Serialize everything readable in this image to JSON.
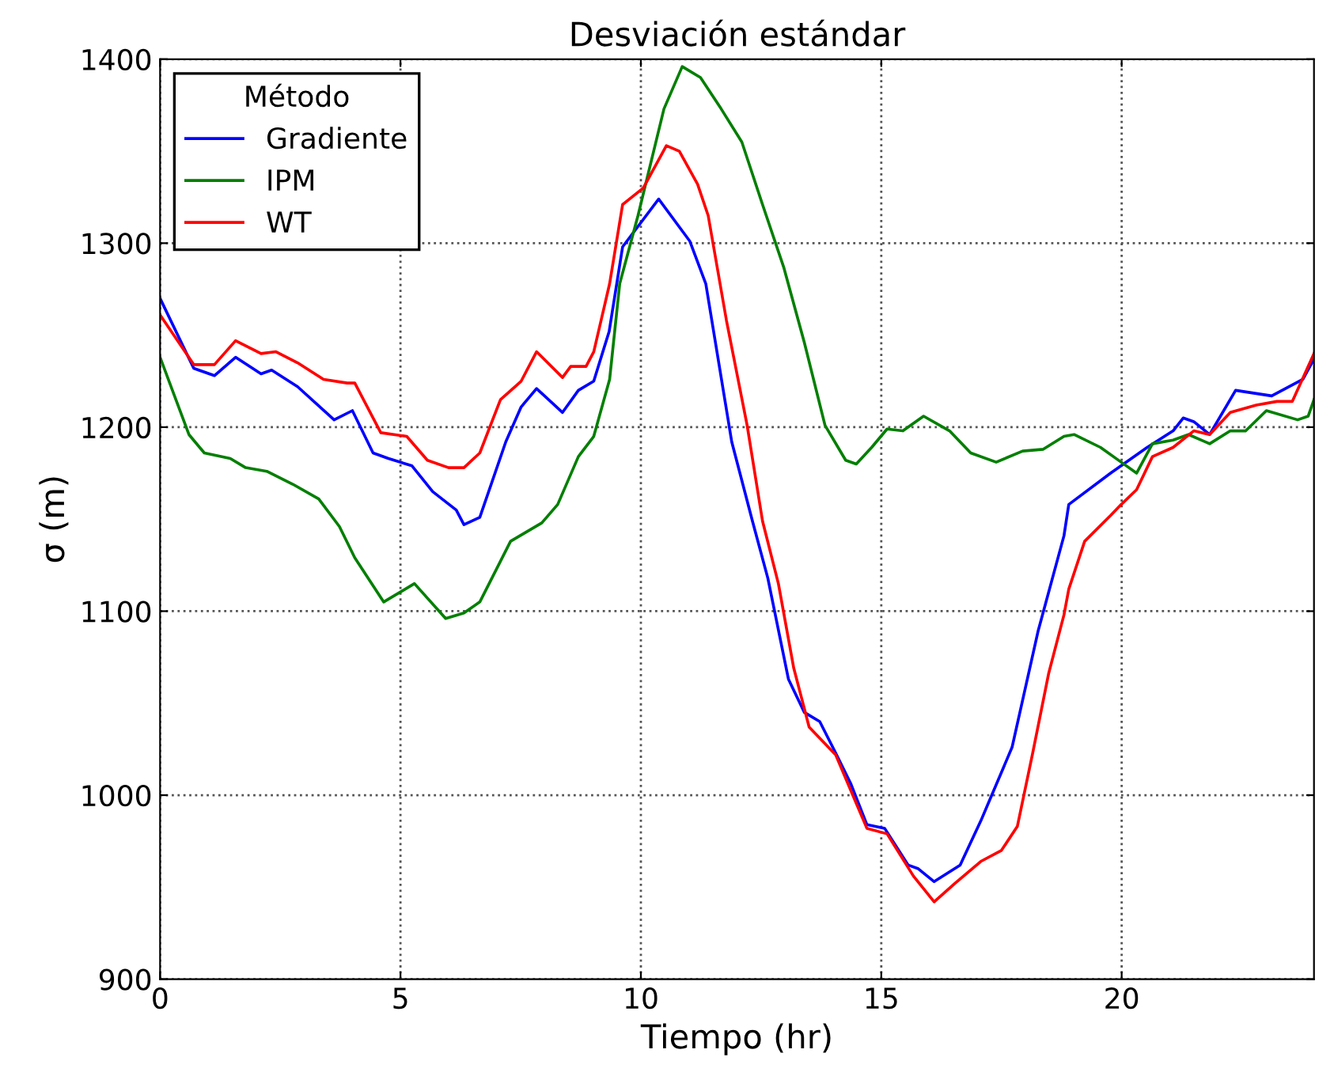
{
  "chart_data": {
    "type": "line",
    "title": "Desviación estándar",
    "xlabel": "Tiempo (hr)",
    "ylabel": "σ (m)",
    "legend_title": "Método",
    "legend": "top left",
    "grid": true,
    "line_style": "solid",
    "marker": "none",
    "xlim": [
      0,
      24
    ],
    "ylim": [
      900,
      1400
    ],
    "xticks": [
      0,
      5,
      10,
      15,
      20
    ],
    "yticks": [
      900,
      1000,
      1100,
      1200,
      1300,
      1400
    ],
    "series": [
      {
        "name": "Gradiente",
        "color": "#0000ff",
        "x": [
          0,
          0.7,
          1.13,
          1.57,
          2.1,
          2.32,
          2.86,
          3.62,
          4.0,
          4.43,
          4.75,
          5.24,
          5.67,
          6.16,
          6.32,
          6.65,
          7.19,
          7.51,
          7.83,
          8.37,
          8.7,
          9.02,
          9.34,
          9.62,
          10.37,
          11.02,
          11.35,
          11.89,
          12.32,
          12.64,
          13.07,
          13.4,
          13.72,
          14.05,
          14.37,
          14.7,
          15.07,
          15.56,
          15.77,
          16.1,
          16.64,
          17.07,
          17.72,
          18.26,
          18.8,
          18.9,
          19.77,
          20.53,
          21.07,
          21.28,
          21.5,
          21.83,
          22.37,
          23.12,
          23.77,
          24
        ],
        "values": [
          1270,
          1232,
          1228,
          1238,
          1229,
          1231,
          1222,
          1204,
          1209,
          1186,
          1183,
          1179,
          1165,
          1155,
          1147,
          1151,
          1192,
          1211,
          1221,
          1208,
          1220,
          1225,
          1252,
          1298,
          1324,
          1301,
          1278,
          1192,
          1149,
          1118,
          1063,
          1045,
          1040,
          1023,
          1006,
          984,
          982,
          962,
          960,
          953,
          962,
          986,
          1026,
          1089,
          1141,
          1158,
          1175,
          1189,
          1198,
          1205,
          1203,
          1196,
          1220,
          1217,
          1226,
          1237
        ]
      },
      {
        "name": "IPM",
        "color": "#007f00",
        "x": [
          0,
          0.6,
          0.92,
          1.46,
          1.78,
          2.22,
          2.76,
          3.3,
          3.73,
          4.05,
          4.65,
          5.29,
          5.94,
          6.32,
          6.65,
          7.29,
          7.94,
          8.27,
          8.7,
          9.02,
          9.35,
          9.56,
          9.94,
          10.48,
          10.86,
          11.24,
          11.67,
          12.1,
          12.53,
          12.97,
          13.4,
          13.83,
          14.26,
          14.48,
          14.8,
          15.12,
          15.45,
          15.88,
          16.42,
          16.86,
          17.39,
          17.94,
          18.37,
          18.8,
          19.01,
          19.56,
          19.99,
          20.31,
          20.64,
          21.07,
          21.39,
          21.83,
          22.26,
          22.58,
          23.01,
          23.66,
          23.88,
          24
        ],
        "values": [
          1238,
          1196,
          1186,
          1183,
          1178,
          1176,
          1169,
          1161,
          1146,
          1129,
          1105,
          1115,
          1096,
          1099,
          1105,
          1138,
          1148,
          1158,
          1184,
          1195,
          1226,
          1278,
          1315,
          1373,
          1396,
          1390,
          1373,
          1355,
          1321,
          1287,
          1246,
          1201,
          1182,
          1180,
          1189,
          1199,
          1198,
          1206,
          1198,
          1186,
          1181,
          1187,
          1188,
          1195,
          1196,
          1189,
          1181,
          1175,
          1191,
          1193,
          1196,
          1191,
          1198,
          1198,
          1209,
          1204,
          1206,
          1215
        ]
      },
      {
        "name": "WT",
        "color": "#ff0000",
        "x": [
          0,
          0.7,
          1.13,
          1.57,
          2.1,
          2.41,
          2.86,
          3.4,
          3.89,
          4.05,
          4.59,
          5.13,
          5.56,
          6.0,
          6.32,
          6.65,
          7.08,
          7.51,
          7.83,
          8.37,
          8.54,
          8.86,
          9.02,
          9.35,
          9.62,
          10.05,
          10.53,
          10.8,
          11.18,
          11.4,
          11.78,
          12.21,
          12.53,
          12.86,
          13.18,
          13.5,
          14.05,
          14.7,
          15.12,
          15.67,
          16.1,
          16.53,
          17.07,
          17.5,
          17.83,
          18.15,
          18.48,
          18.8,
          18.9,
          19.23,
          19.77,
          19.99,
          20.31,
          20.64,
          21.07,
          21.5,
          21.83,
          22.26,
          22.8,
          23.23,
          23.55,
          24
        ],
        "values": [
          1261,
          1234,
          1234,
          1247,
          1240,
          1241,
          1235,
          1226,
          1224,
          1224,
          1197,
          1195,
          1182,
          1178,
          1178,
          1186,
          1215,
          1225,
          1241,
          1227,
          1233,
          1233,
          1241,
          1278,
          1321,
          1330,
          1353,
          1350,
          1332,
          1315,
          1258,
          1201,
          1149,
          1115,
          1069,
          1037,
          1022,
          982,
          979,
          956,
          942,
          952,
          964,
          970,
          983,
          1023,
          1066,
          1098,
          1112,
          1138,
          1152,
          1158,
          1166,
          1184,
          1189,
          1198,
          1196,
          1208,
          1212,
          1214,
          1214,
          1240
        ]
      }
    ]
  }
}
